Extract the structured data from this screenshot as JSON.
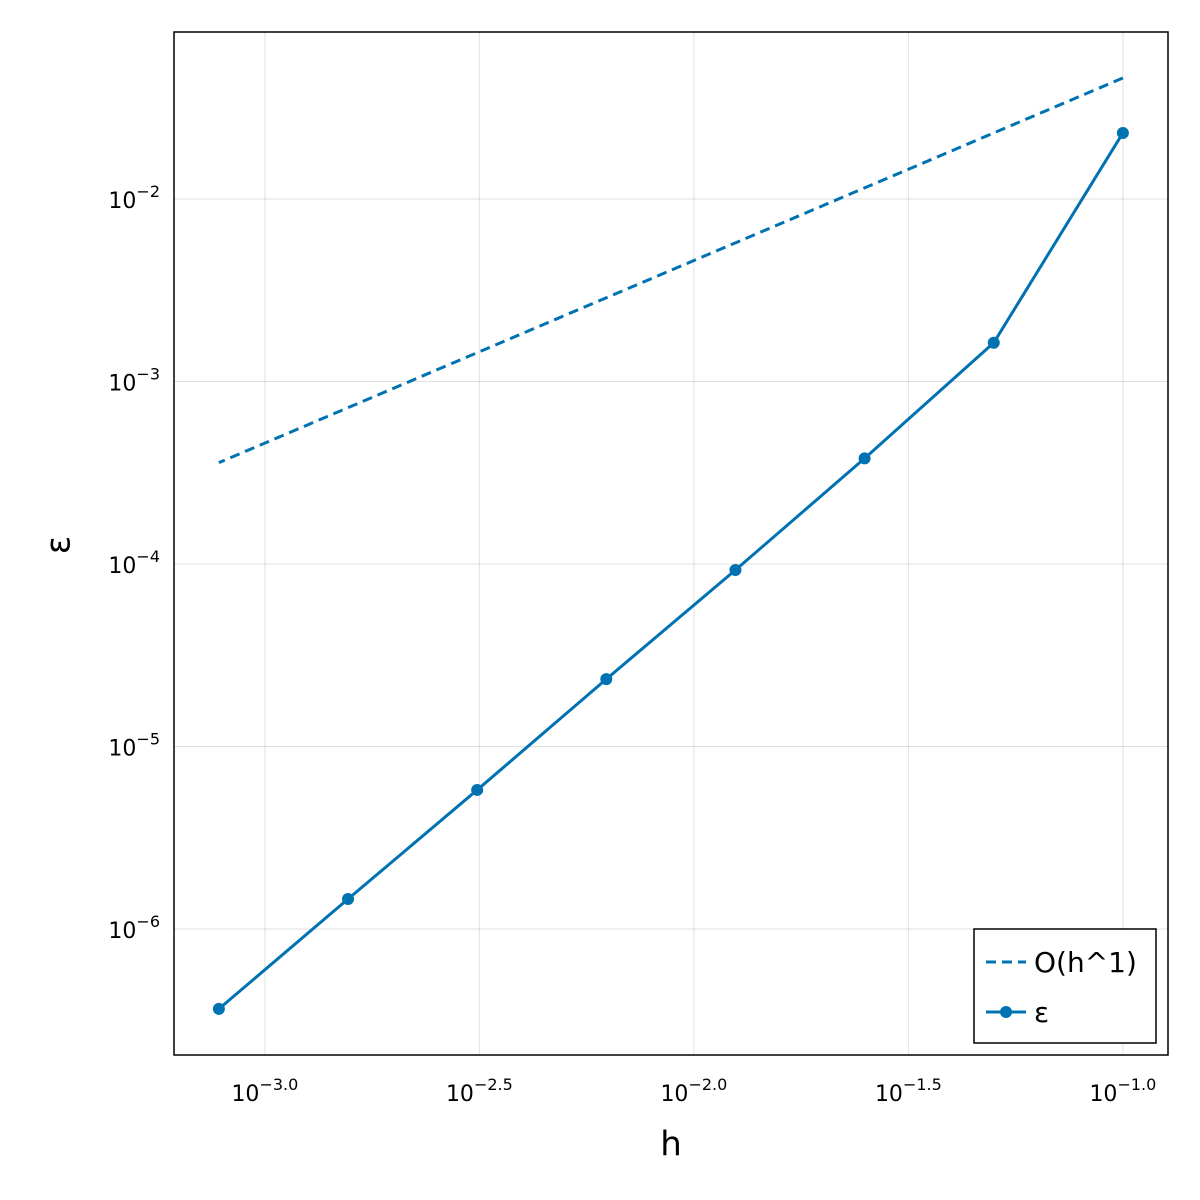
{
  "chart_data": {
    "type": "line",
    "x_label": "h",
    "y_label": "ε",
    "x": [
      0.1,
      0.05,
      0.025,
      0.0125,
      0.00625,
      0.003125,
      0.0015625,
      0.00078125
    ],
    "series": [
      {
        "name": "O(h^1)",
        "color": "#0072b2",
        "dashed": true,
        "markers": false,
        "values": [
          0.046,
          0.023,
          0.0115,
          0.00575,
          0.002875,
          0.0014375,
          0.00071875,
          0.000359
        ]
      },
      {
        "name": "ε",
        "color": "#0072b2",
        "dashed": false,
        "markers": true,
        "values": [
          0.023,
          0.00163,
          0.000379,
          9.27e-05,
          2.34e-05,
          5.78e-06,
          1.46e-06,
          3.65e-07
        ]
      }
    ],
    "x_log": true,
    "y_log": true,
    "xlim": [
      0.000614,
      0.1274
    ],
    "ylim": [
      2.04e-07,
      0.0822
    ],
    "xticks": [
      {
        "value": 0.001,
        "label": "10−3.0"
      },
      {
        "value": 0.0031623,
        "label": "10−2.5"
      },
      {
        "value": 0.01,
        "label": "10−2.0"
      },
      {
        "value": 0.031623,
        "label": "10−1.5"
      },
      {
        "value": 0.1,
        "label": "10−1.0"
      }
    ],
    "yticks": [
      {
        "value": 0.01,
        "label": "10−2"
      },
      {
        "value": 0.001,
        "label": "10−3"
      },
      {
        "value": 0.0001,
        "label": "10−4"
      },
      {
        "value": 1e-05,
        "label": "10−5"
      },
      {
        "value": 1e-06,
        "label": "10−6"
      }
    ],
    "grid": true,
    "legend_position": "bottom-right"
  }
}
